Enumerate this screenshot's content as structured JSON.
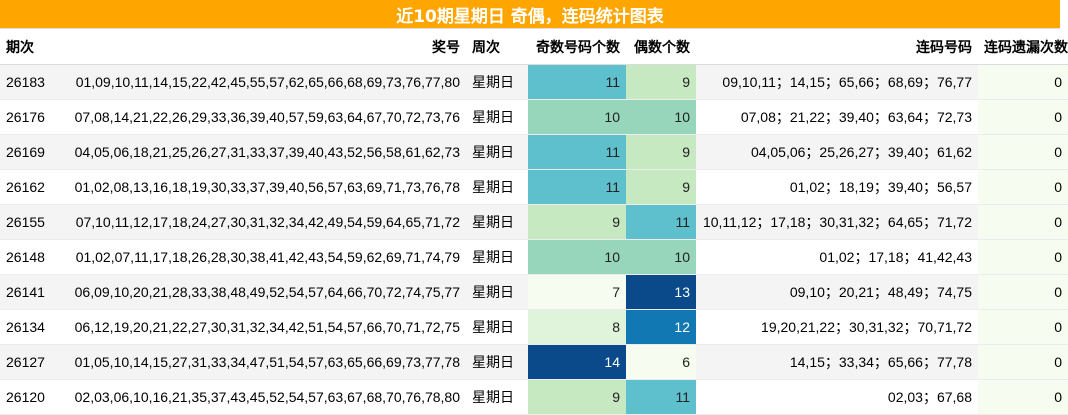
{
  "title": "近10期星期日 奇偶，连码统计图表",
  "headers": {
    "issue": "期次",
    "numbers": "奖号",
    "weekday": "周次",
    "odd": "奇数号码个数",
    "even": "偶数个数",
    "connected": "连码号码",
    "missing": "连码遗漏次数"
  },
  "rows": [
    {
      "issue": "26183",
      "numbers": "01,09,10,11,14,15,22,42,45,55,57,62,65,66,68,69,73,76,77,80",
      "weekday": "星期日",
      "odd": 11,
      "even": 9,
      "connected": "09,10,11；14,15；65,66；68,69；76,77",
      "missing": 0
    },
    {
      "issue": "26176",
      "numbers": "07,08,14,21,22,26,29,33,36,39,40,57,59,63,64,67,70,72,73,76",
      "weekday": "星期日",
      "odd": 10,
      "even": 10,
      "connected": "07,08；21,22；39,40；63,64；72,73",
      "missing": 0
    },
    {
      "issue": "26169",
      "numbers": "04,05,06,18,21,25,26,27,31,33,37,39,40,43,52,56,58,61,62,73",
      "weekday": "星期日",
      "odd": 11,
      "even": 9,
      "connected": "04,05,06；25,26,27；39,40；61,62",
      "missing": 0
    },
    {
      "issue": "26162",
      "numbers": "01,02,08,13,16,18,19,30,33,37,39,40,56,57,63,69,71,73,76,78",
      "weekday": "星期日",
      "odd": 11,
      "even": 9,
      "connected": "01,02；18,19；39,40；56,57",
      "missing": 0
    },
    {
      "issue": "26155",
      "numbers": "07,10,11,12,17,18,24,27,30,31,32,34,42,49,54,59,64,65,71,72",
      "weekday": "星期日",
      "odd": 9,
      "even": 11,
      "connected": "10,11,12；17,18；30,31,32；64,65；71,72",
      "missing": 0
    },
    {
      "issue": "26148",
      "numbers": "01,02,07,11,17,18,26,28,30,38,41,42,43,54,59,62,69,71,74,79",
      "weekday": "星期日",
      "odd": 10,
      "even": 10,
      "connected": "01,02；17,18；41,42,43",
      "missing": 0
    },
    {
      "issue": "26141",
      "numbers": "06,09,10,20,21,28,33,38,48,49,52,54,57,64,66,70,72,74,75,77",
      "weekday": "星期日",
      "odd": 7,
      "even": 13,
      "connected": "09,10；20,21；48,49；74,75",
      "missing": 0
    },
    {
      "issue": "26134",
      "numbers": "06,12,19,20,21,22,27,30,31,32,34,42,51,54,57,66,70,71,72,75",
      "weekday": "星期日",
      "odd": 8,
      "even": 12,
      "connected": "19,20,21,22；30,31,32；70,71,72",
      "missing": 0
    },
    {
      "issue": "26127",
      "numbers": "01,05,10,14,15,27,31,33,34,47,51,54,57,63,65,66,69,73,77,78",
      "weekday": "星期日",
      "odd": 14,
      "even": 6,
      "connected": "14,15；33,34；65,66；77,78",
      "missing": 0
    },
    {
      "issue": "26120",
      "numbers": "02,03,06,10,16,21,35,37,43,45,52,54,57,63,67,68,70,76,78,80",
      "weekday": "星期日",
      "odd": 9,
      "even": 11,
      "connected": "02,03；67,68",
      "missing": 0
    }
  ],
  "colors": {
    "title_bg": "#FFA500",
    "title_fg": "#FFFFFF",
    "heat_scale": {
      "6": "#f7fcf0",
      "7": "#f7fcf0",
      "8": "#e0f3db",
      "9": "#c6e9c2",
      "10": "#97d6bb",
      "11": "#5ebfcd",
      "12": "#1278b4",
      "13": "#0b4a8a",
      "14": "#0b4a8a"
    }
  }
}
